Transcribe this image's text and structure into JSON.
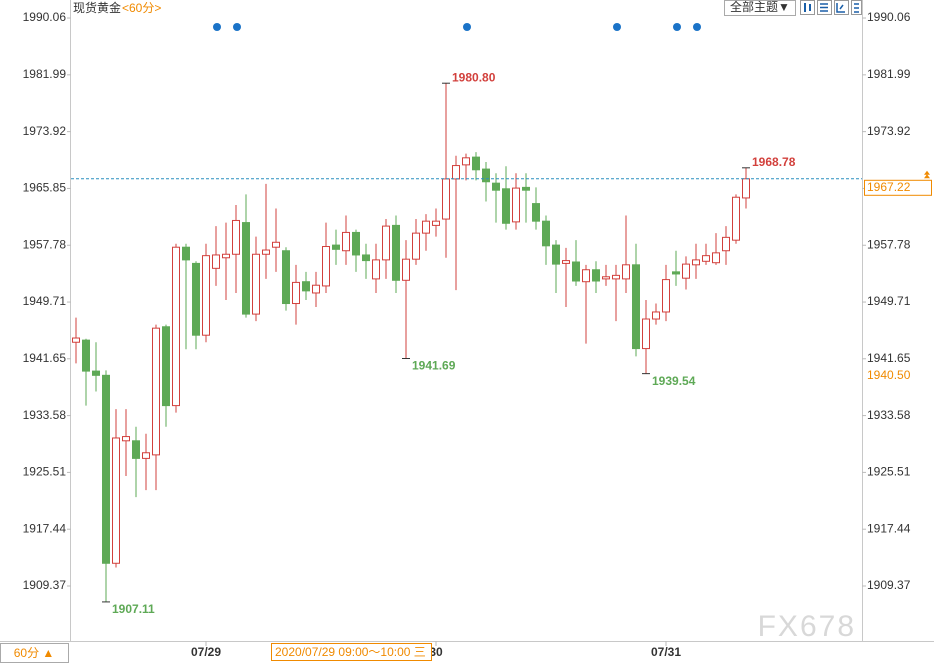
{
  "chart_data": {
    "type": "candlestick",
    "title": "现货黄金",
    "subtitle": "<60分>",
    "theme_button": "全部主题▼",
    "period_button": "60分 ▲",
    "cursor_time": "2020/07/29 09:00～10:00 三",
    "watermark": "FX678",
    "up_color": "#d2403c",
    "down_color": "#5ea956",
    "ylim": [
      1901.7,
      1992.62
    ],
    "yticks": [
      1909.37,
      1917.44,
      1925.51,
      1933.58,
      1941.65,
      1949.71,
      1957.78,
      1965.85,
      1973.92,
      1981.99,
      1990.06
    ],
    "grid": false,
    "last_price": 1967.22,
    "marker_price": {
      "value": 1940.5,
      "label": "1940.50"
    },
    "categories": [
      null,
      null,
      null,
      null,
      null,
      null,
      null,
      null,
      null,
      null,
      null,
      null,
      null,
      "07/29",
      null,
      null,
      null,
      null,
      null,
      null,
      null,
      null,
      null,
      null,
      null,
      null,
      null,
      null,
      null,
      null,
      null,
      null,
      null,
      null,
      null,
      null,
      "30",
      null,
      null,
      null,
      null,
      null,
      null,
      null,
      null,
      null,
      null,
      null,
      null,
      null,
      null,
      null,
      null,
      null,
      null,
      null,
      null,
      null,
      null,
      "07/31",
      null,
      null,
      null,
      null,
      null,
      null,
      null,
      null
    ],
    "open": [
      1944.0,
      1944.3,
      1939.9,
      1939.3,
      1912.6,
      1930.0,
      1930.0,
      1927.5,
      1928.0,
      1946.2,
      1935.0,
      1957.5,
      1955.2,
      1945.0,
      1954.5,
      1956.0,
      1956.5,
      1961.0,
      1948.0,
      1956.5,
      1957.5,
      1957.0,
      1949.5,
      1952.6,
      1951.0,
      1952.0,
      1957.8,
      1957.0,
      1959.6,
      1956.4,
      1953.0,
      1955.7,
      1960.6,
      1952.8,
      1955.8,
      1959.5,
      1960.6,
      1961.5,
      1967.2,
      1969.2,
      1970.3,
      1968.6,
      1966.6,
      1965.8,
      1961.1,
      1966.0,
      1963.7,
      1961.2,
      1957.8,
      1955.2,
      1955.4,
      1952.6,
      1954.3,
      1953.0,
      1953.0,
      1953.0,
      1955.0,
      1943.1,
      1947.3,
      1948.3,
      1954.0,
      1953.1,
      1955.0,
      1955.5,
      1955.3,
      1957.0,
      1958.5,
      1964.5
    ],
    "high": [
      1947.5,
      1944.5,
      1944.0,
      1940.0,
      1934.5,
      1934.5,
      1932.0,
      1931.0,
      1946.5,
      1946.5,
      1958.0,
      1958.0,
      1955.5,
      1958.0,
      1960.5,
      1961.0,
      1963.5,
      1965.0,
      1959.0,
      1966.5,
      1963.0,
      1957.5,
      1955.0,
      1954.0,
      1954.0,
      1961.0,
      1960.0,
      1962.0,
      1960.0,
      1958.0,
      1958.0,
      1961.5,
      1962.0,
      1958.5,
      1961.5,
      1962.2,
      1963.0,
      1980.8,
      1970.5,
      1970.8,
      1971.0,
      1969.6,
      1968.0,
      1969.0,
      1968.0,
      1968.0,
      1966.0,
      1962.0,
      1958.5,
      1957.4,
      1958.5,
      1955.0,
      1955.5,
      1955.0,
      1955.0,
      1962.0,
      1958.0,
      1950.0,
      1949.5,
      1955.0,
      1957.0,
      1956.2,
      1958.0,
      1958.0,
      1959.5,
      1960.5,
      1965.0,
      1968.78
    ],
    "low": [
      1941.0,
      1935.0,
      1937.0,
      1907.11,
      1912.0,
      1925.0,
      1922.0,
      1923.0,
      1923.0,
      1932.0,
      1934.0,
      1943.0,
      1943.0,
      1944.0,
      1952.0,
      1950.0,
      1951.0,
      1947.5,
      1947.0,
      1953.0,
      1954.0,
      1948.5,
      1946.5,
      1950.0,
      1949.0,
      1951.0,
      1955.0,
      1955.0,
      1954.0,
      1953.0,
      1951.0,
      1953.0,
      1951.0,
      1941.69,
      1955.0,
      1957.0,
      1959.0,
      1956.0,
      1951.4,
      1967.0,
      1967.0,
      1964.0,
      1961.0,
      1960.0,
      1960.0,
      1961.0,
      1960.0,
      1955.0,
      1951.0,
      1949.0,
      1952.0,
      1943.8,
      1951.0,
      1952.0,
      1947.0,
      1951.0,
      1942.0,
      1939.54,
      1946.5,
      1947.0,
      1952.0,
      1951.5,
      1953.0,
      1955.0,
      1955.0,
      1955.0,
      1958.0,
      1963.0
    ],
    "close": [
      1944.6,
      1939.9,
      1939.3,
      1912.6,
      1930.4,
      1930.6,
      1927.5,
      1928.3,
      1946.0,
      1935.0,
      1957.5,
      1955.7,
      1945.0,
      1956.3,
      1956.4,
      1956.5,
      1961.3,
      1948.0,
      1956.5,
      1957.1,
      1958.2,
      1949.5,
      1952.5,
      1951.3,
      1952.1,
      1957.6,
      1957.2,
      1959.6,
      1956.4,
      1955.6,
      1955.7,
      1960.5,
      1952.8,
      1955.8,
      1959.5,
      1961.2,
      1961.2,
      1967.2,
      1969.1,
      1970.2,
      1968.5,
      1966.8,
      1965.6,
      1960.9,
      1965.9,
      1965.6,
      1961.2,
      1957.7,
      1955.1,
      1955.6,
      1952.7,
      1954.3,
      1952.7,
      1953.3,
      1953.5,
      1955.0,
      1943.1,
      1947.3,
      1948.3,
      1952.9,
      1953.7,
      1955.1,
      1955.7,
      1956.3,
      1956.7,
      1958.9,
      1964.6,
      1967.22
    ],
    "high_labels": [
      null,
      null,
      null,
      null,
      null,
      null,
      null,
      null,
      null,
      null,
      null,
      null,
      null,
      null,
      null,
      null,
      null,
      null,
      null,
      null,
      null,
      null,
      null,
      null,
      null,
      null,
      null,
      null,
      null,
      null,
      null,
      null,
      null,
      null,
      null,
      null,
      null,
      "1980.80",
      null,
      null,
      null,
      null,
      null,
      null,
      null,
      null,
      null,
      null,
      null,
      null,
      null,
      null,
      null,
      null,
      null,
      null,
      null,
      null,
      null,
      null,
      null,
      null,
      null,
      null,
      null,
      null,
      null,
      "1968.78"
    ],
    "low_labels": [
      null,
      null,
      null,
      "1907.11",
      null,
      null,
      null,
      null,
      null,
      null,
      null,
      null,
      null,
      null,
      null,
      null,
      null,
      null,
      null,
      null,
      null,
      null,
      null,
      null,
      null,
      null,
      null,
      null,
      null,
      null,
      null,
      null,
      null,
      "1941.69",
      null,
      null,
      null,
      null,
      null,
      null,
      null,
      null,
      null,
      null,
      null,
      null,
      null,
      null,
      null,
      null,
      null,
      null,
      null,
      null,
      null,
      null,
      null,
      "1939.54",
      null,
      null,
      null,
      null,
      null,
      null,
      null,
      null,
      null,
      null
    ]
  }
}
